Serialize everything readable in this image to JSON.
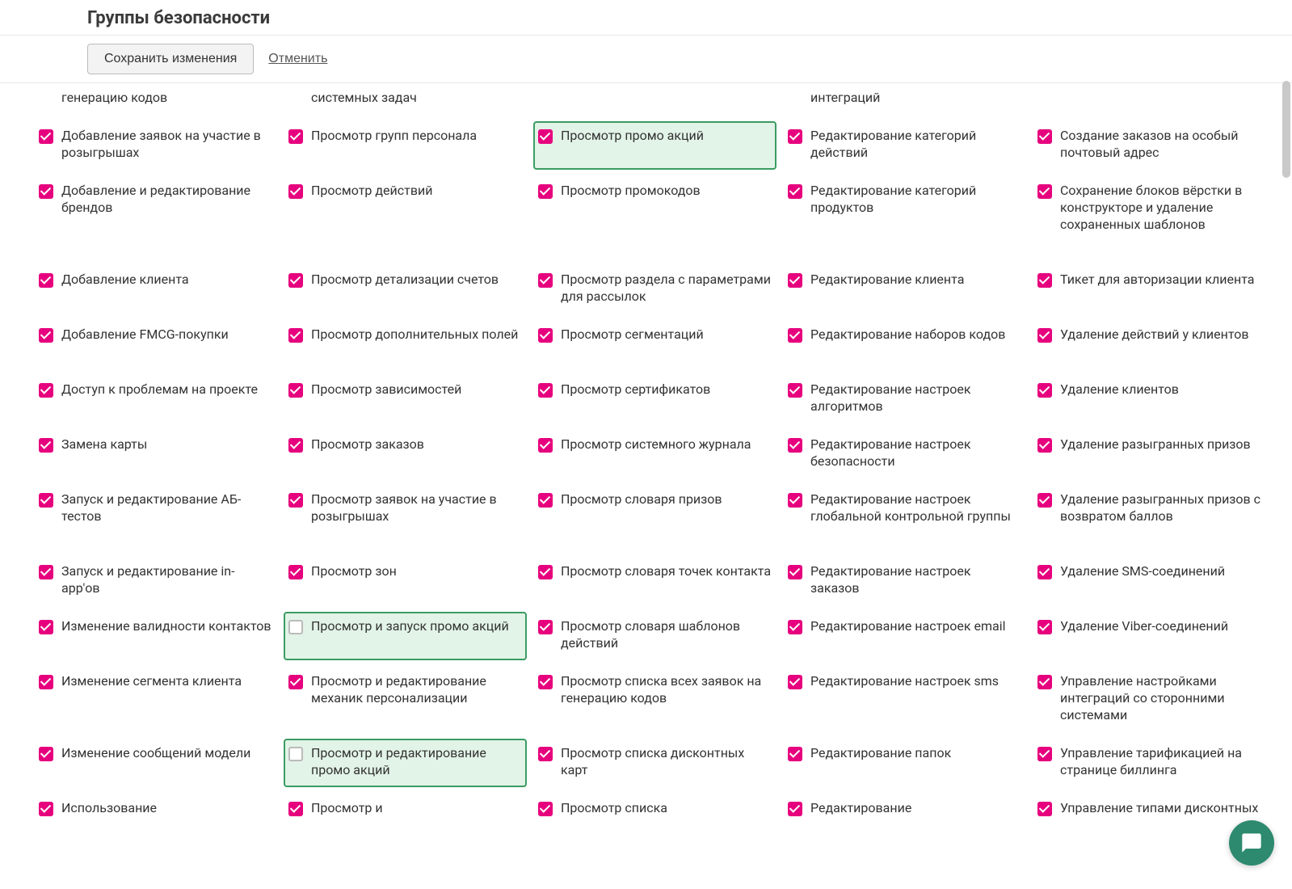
{
  "header": {
    "title": "Группы безопасности"
  },
  "toolbar": {
    "save_label": "Сохранить изменения",
    "cancel_label": "Отменить"
  },
  "colors": {
    "checkbox_checked": "#e6007e",
    "highlight_bg": "#e2f3e7",
    "highlight_border": "#3b9c63",
    "chat_bg": "#2d8a6f"
  },
  "columns": [
    [
      {
        "label": "генерацию кодов",
        "checked": true,
        "partial_top": true
      },
      {
        "label": "Добавление заявок на участие в розыгрышах",
        "checked": true
      },
      {
        "label": "Добавление и редактирование брендов",
        "checked": true
      },
      {
        "label": "Добавление клиента",
        "checked": true
      },
      {
        "label": "Добавление FMCG-покупки",
        "checked": true
      },
      {
        "label": "Доступ к проблемам на проекте",
        "checked": true
      },
      {
        "label": "Замена карты",
        "checked": true
      },
      {
        "label": "Запуск и редактирование АБ-тестов",
        "checked": true
      },
      {
        "label": "Запуск и редактирование in-app'ов",
        "checked": true
      },
      {
        "label": "Изменение валидности контактов",
        "checked": true
      },
      {
        "label": "Изменение сегмента клиента",
        "checked": true
      },
      {
        "label": "Изменение сообщений модели",
        "checked": true
      },
      {
        "label": "Использование",
        "checked": true,
        "partial_bottom": true
      }
    ],
    [
      {
        "label": "системных задач",
        "checked": true,
        "partial_top": true
      },
      {
        "label": "Просмотр групп персонала",
        "checked": true
      },
      {
        "label": "Просмотр действий",
        "checked": true
      },
      {
        "label": "Просмотр детализации счетов",
        "checked": true
      },
      {
        "label": "Просмотр дополнительных полей",
        "checked": true
      },
      {
        "label": "Просмотр зависимостей",
        "checked": true
      },
      {
        "label": "Просмотр заказов",
        "checked": true
      },
      {
        "label": "Просмотр заявок на участие в розыгрышах",
        "checked": true
      },
      {
        "label": "Просмотр зон",
        "checked": true
      },
      {
        "label": "Просмотр и запуск промо акций",
        "checked": false,
        "highlighted": true
      },
      {
        "label": "Просмотр и редактирование механик персонализации",
        "checked": true
      },
      {
        "label": "Просмотр и редактирование промо акций",
        "checked": false,
        "highlighted": true
      },
      {
        "label": "Просмотр и",
        "checked": true,
        "partial_bottom": true
      }
    ],
    [
      {
        "label": "",
        "checked": true,
        "partial_top": true,
        "empty": true
      },
      {
        "label": "Просмотр промо акций",
        "checked": true,
        "highlighted": true
      },
      {
        "label": "Просмотр промокодов",
        "checked": true
      },
      {
        "label": "Просмотр раздела с параметрами для рассылок",
        "checked": true
      },
      {
        "label": "Просмотр сегментаций",
        "checked": true
      },
      {
        "label": "Просмотр сертификатов",
        "checked": true
      },
      {
        "label": "Просмотр системного журнала",
        "checked": true
      },
      {
        "label": "Просмотр словаря призов",
        "checked": true
      },
      {
        "label": "Просмотр словаря точек контакта",
        "checked": true
      },
      {
        "label": "Просмотр словаря шаблонов действий",
        "checked": true
      },
      {
        "label": "Просмотр списка всех заявок на генерацию кодов",
        "checked": true
      },
      {
        "label": "Просмотр списка дисконтных карт",
        "checked": true
      },
      {
        "label": "Просмотр списка",
        "checked": true,
        "partial_bottom": true
      }
    ],
    [
      {
        "label": "интеграций",
        "checked": true,
        "partial_top": true
      },
      {
        "label": "Редактирование категорий действий",
        "checked": true
      },
      {
        "label": "Редактирование категорий продуктов",
        "checked": true
      },
      {
        "label": "Редактирование клиента",
        "checked": true
      },
      {
        "label": "Редактирование наборов кодов",
        "checked": true
      },
      {
        "label": "Редактирование настроек алгоритмов",
        "checked": true
      },
      {
        "label": "Редактирование настроек безопасности",
        "checked": true
      },
      {
        "label": "Редактирование настроек глобальной контрольной группы",
        "checked": true
      },
      {
        "label": "Редактирование настроек заказов",
        "checked": true
      },
      {
        "label": "Редактирование настроек email",
        "checked": true
      },
      {
        "label": "Редактирование настроек sms",
        "checked": true
      },
      {
        "label": "Редактирование папок",
        "checked": true
      },
      {
        "label": "Редактирование",
        "checked": true,
        "partial_bottom": true
      }
    ],
    [
      {
        "label": "",
        "checked": true,
        "partial_top": true,
        "empty": true
      },
      {
        "label": "Создание заказов на особый почтовый адрес",
        "checked": true
      },
      {
        "label": "Сохранение блоков вёрстки в конструкторе и удаление сохраненных шаблонов",
        "checked": true
      },
      {
        "label": "Тикет для авторизации клиента",
        "checked": true
      },
      {
        "label": "Удаление действий у клиентов",
        "checked": true
      },
      {
        "label": "Удаление клиентов",
        "checked": true
      },
      {
        "label": "Удаление разыгранных призов",
        "checked": true
      },
      {
        "label": "Удаление разыгранных призов с возвратом баллов",
        "checked": true
      },
      {
        "label": "Удаление SMS-соединений",
        "checked": true
      },
      {
        "label": "Удаление Viber-соединений",
        "checked": true
      },
      {
        "label": "Управление настройками интеграций со сторонними системами",
        "checked": true
      },
      {
        "label": "Управление тарификацией на странице биллинга",
        "checked": true
      },
      {
        "label": "Управление типами дисконтных",
        "checked": true,
        "partial_bottom": true
      }
    ]
  ]
}
